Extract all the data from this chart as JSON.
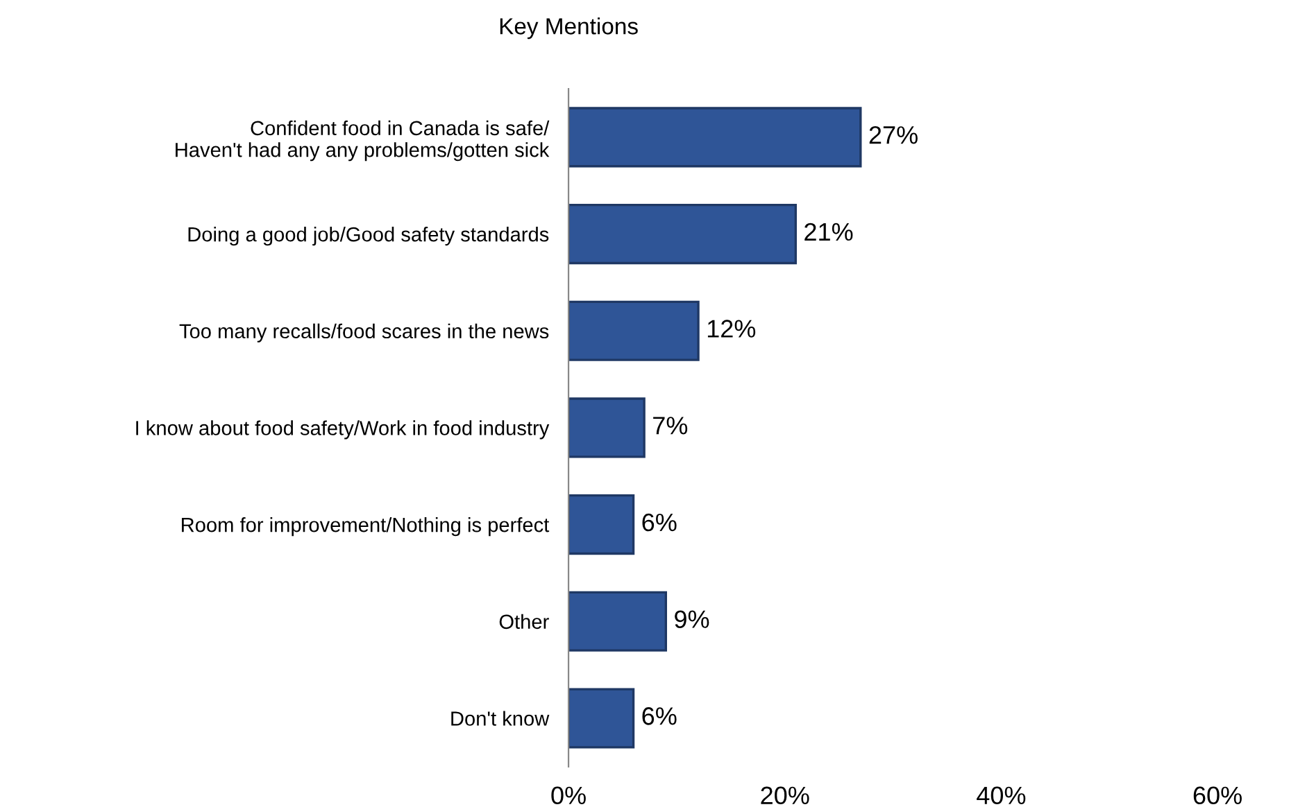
{
  "chart_data": {
    "type": "bar",
    "orientation": "horizontal",
    "title": "Key Mentions",
    "categories": [
      "Confident food in Canada is safe/\nHaven't had any any problems/gotten sick",
      "Doing a good job/Good safety standards",
      "Too many recalls/food scares in the news",
      "I know about food safety/Work in food industry",
      "Room for improvement/Nothing is perfect",
      "Other",
      "Don't know"
    ],
    "values": [
      27,
      21,
      12,
      7,
      6,
      9,
      6
    ],
    "value_labels": [
      "27%",
      "21%",
      "12%",
      "7%",
      "6%",
      "9%",
      "6%"
    ],
    "color": "#2f5597",
    "xlim": [
      0,
      60
    ],
    "xticks": [
      {
        "value": 0,
        "label": "0%"
      },
      {
        "value": 20,
        "label": "20%"
      },
      {
        "value": 40,
        "label": "40%"
      },
      {
        "value": 60,
        "label": "60%"
      }
    ],
    "grid": false,
    "legend": false
  }
}
